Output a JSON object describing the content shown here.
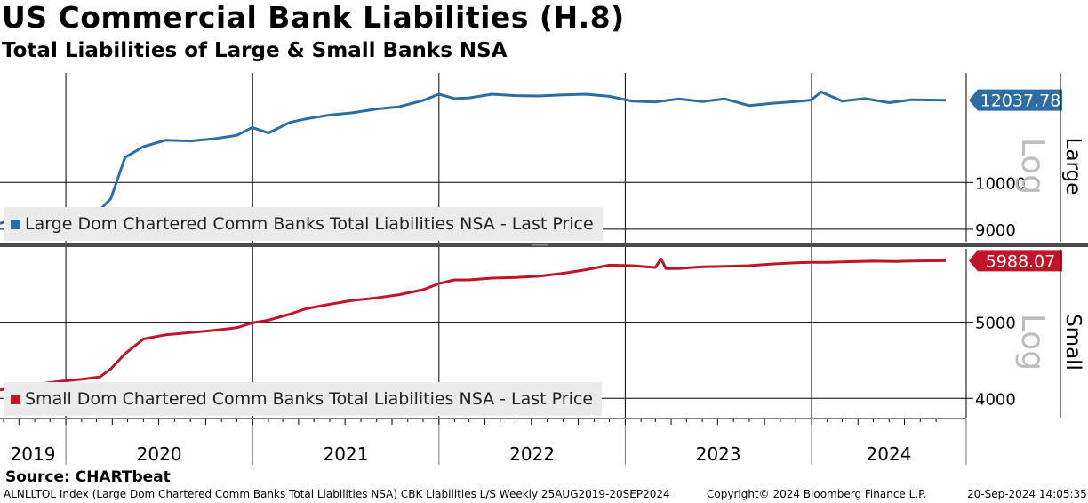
{
  "title": "US Commercial Bank Liabilities (H.8)",
  "subtitle": "Total Liabilities of Large & Small Banks NSA",
  "source": "Source: CHARTbeat",
  "footer": {
    "left": "ALNLLTOL Index (Large Dom Chartered Comm Banks Total Liabilities NSA) CBK Liabilities L/S  Weekly 25AUG2019-20SEP2024",
    "middle": "Copyright© 2024 Bloomberg Finance L.P.",
    "right": "20-Sep-2024 14:05:35"
  },
  "chart_data": [
    {
      "type": "line",
      "panel": "Large",
      "scale": "Log",
      "ylim": [
        8750,
        12800
      ],
      "yticks": [
        {
          "value": 9000,
          "label": "9000"
        },
        {
          "value": 10000,
          "label": "10000"
        }
      ],
      "last_value_label": "12037.78",
      "legend": "Large Dom Chartered Comm Banks Total Liabilities NSA - Last Price",
      "color": "#2e6da4",
      "series": [
        {
          "name": "Large Dom Chartered Comm Banks Total Liabilities NSA - Last Price",
          "x": [
            "2019-08-25",
            "2019-10-15",
            "2019-12-15",
            "2020-02-01",
            "2020-03-08",
            "2020-03-29",
            "2020-04-26",
            "2020-06-01",
            "2020-07-15",
            "2020-09-01",
            "2020-10-15",
            "2020-12-01",
            "2020-12-31",
            "2021-02-01",
            "2021-03-15",
            "2021-04-15",
            "2021-06-01",
            "2021-07-15",
            "2021-09-01",
            "2021-10-15",
            "2021-12-01",
            "2022-01-01",
            "2022-02-01",
            "2022-03-01",
            "2022-04-15",
            "2022-06-01",
            "2022-07-15",
            "2022-09-01",
            "2022-10-15",
            "2022-12-01",
            "2023-01-15",
            "2023-03-01",
            "2023-04-15",
            "2023-06-01",
            "2023-07-15",
            "2023-09-01",
            "2023-10-15",
            "2023-12-01",
            "2023-12-31",
            "2024-01-20",
            "2024-03-01",
            "2024-04-15",
            "2024-06-01",
            "2024-07-15",
            "2024-09-20"
          ],
          "values": [
            9120,
            9280,
            9380,
            9310,
            9400,
            9640,
            10580,
            10840,
            11000,
            10980,
            11030,
            11120,
            11320,
            11180,
            11450,
            11540,
            11640,
            11700,
            11800,
            11860,
            12030,
            12200,
            12080,
            12100,
            12200,
            12160,
            12150,
            12180,
            12200,
            12140,
            12010,
            11990,
            12070,
            12000,
            12070,
            11890,
            11950,
            12000,
            12040,
            12260,
            12010,
            12080,
            11970,
            12050,
            12038
          ]
        }
      ]
    },
    {
      "type": "line",
      "panel": "Small",
      "scale": "Log",
      "ylim": [
        3780,
        6200
      ],
      "yticks": [
        {
          "value": 4000,
          "label": "4000"
        },
        {
          "value": 5000,
          "label": "5000"
        }
      ],
      "last_value_label": "5988.07",
      "legend": "Small Dom Chartered Comm Banks Total Liabilities NSA - Last Price",
      "color": "#c0142a",
      "series": [
        {
          "name": "Small Dom Chartered Comm Banks Total Liabilities NSA - Last Price",
          "x": [
            "2019-08-25",
            "2019-10-15",
            "2019-12-15",
            "2020-02-01",
            "2020-03-08",
            "2020-03-29",
            "2020-04-26",
            "2020-06-01",
            "2020-07-15",
            "2020-09-01",
            "2020-10-15",
            "2020-12-01",
            "2020-12-31",
            "2021-02-01",
            "2021-03-15",
            "2021-04-15",
            "2021-06-01",
            "2021-07-15",
            "2021-09-01",
            "2021-10-15",
            "2021-12-01",
            "2022-01-01",
            "2022-02-01",
            "2022-03-01",
            "2022-04-15",
            "2022-06-01",
            "2022-07-15",
            "2022-09-01",
            "2022-10-15",
            "2022-12-01",
            "2023-01-15",
            "2023-03-01",
            "2023-03-12",
            "2023-03-22",
            "2023-04-15",
            "2023-06-01",
            "2023-07-15",
            "2023-09-01",
            "2023-10-15",
            "2023-12-01",
            "2023-12-31",
            "2024-02-01",
            "2024-03-15",
            "2024-05-01",
            "2024-06-15",
            "2024-08-01",
            "2024-09-20"
          ],
          "values": [
            4100,
            4150,
            4200,
            4230,
            4260,
            4360,
            4560,
            4760,
            4820,
            4850,
            4880,
            4920,
            4990,
            5030,
            5120,
            5200,
            5270,
            5330,
            5370,
            5420,
            5500,
            5600,
            5660,
            5660,
            5690,
            5700,
            5720,
            5770,
            5830,
            5910,
            5900,
            5870,
            6020,
            5850,
            5850,
            5880,
            5890,
            5900,
            5930,
            5950,
            5960,
            5960,
            5970,
            5980,
            5975,
            5985,
            5988
          ]
        }
      ]
    }
  ],
  "x_axis": {
    "years": [
      "2019",
      "2020",
      "2021",
      "2022",
      "2023",
      "2024"
    ],
    "start": "2019-08-25",
    "end": "2024-09-20"
  }
}
